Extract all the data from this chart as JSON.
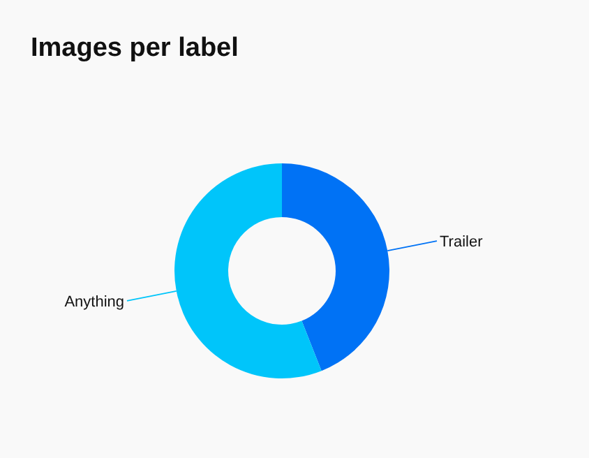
{
  "chart_data": {
    "type": "donut",
    "title": "Images per label",
    "categories": [
      "Trailer",
      "Anything"
    ],
    "values": [
      44,
      56
    ],
    "colors": [
      "#0072f5",
      "#00c5fa"
    ]
  }
}
